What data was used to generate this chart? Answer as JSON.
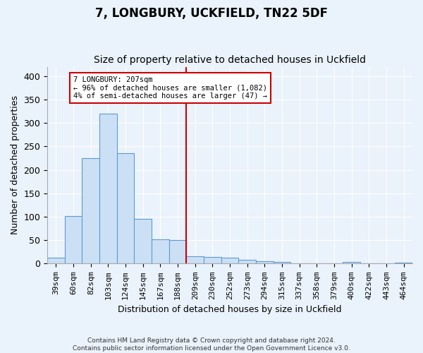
{
  "title": "7, LONGBURY, UCKFIELD, TN22 5DF",
  "subtitle": "Size of property relative to detached houses in Uckfield",
  "xlabel": "Distribution of detached houses by size in Uckfield",
  "ylabel": "Number of detached properties",
  "footnote1": "Contains HM Land Registry data © Crown copyright and database right 2024.",
  "footnote2": "Contains public sector information licensed under the Open Government Licence v3.0.",
  "categories": [
    "39sqm",
    "60sqm",
    "82sqm",
    "103sqm",
    "124sqm",
    "145sqm",
    "167sqm",
    "188sqm",
    "209sqm",
    "230sqm",
    "252sqm",
    "273sqm",
    "294sqm",
    "315sqm",
    "337sqm",
    "358sqm",
    "379sqm",
    "400sqm",
    "422sqm",
    "443sqm",
    "464sqm"
  ],
  "values": [
    12,
    102,
    225,
    320,
    236,
    96,
    52,
    51,
    16,
    14,
    13,
    8,
    5,
    3,
    1,
    0,
    0,
    3,
    0,
    1,
    2
  ],
  "bar_color": "#cce0f5",
  "bar_edge_color": "#5b9bd5",
  "vline_index": 8,
  "vline_color": "#cc0000",
  "annotation_line1": "7 LONGBURY: 207sqm",
  "annotation_line2": "← 96% of detached houses are smaller (1,082)",
  "annotation_line3": "4% of semi-detached houses are larger (47) →",
  "annotation_box_color": "#cc0000",
  "ylim": [
    0,
    420
  ],
  "yticks": [
    0,
    50,
    100,
    150,
    200,
    250,
    300,
    350,
    400
  ],
  "background_color": "#eaf2fb",
  "grid_color": "#ffffff",
  "title_fontsize": 12,
  "subtitle_fontsize": 10,
  "tick_fontsize": 8,
  "ylabel_fontsize": 9,
  "xlabel_fontsize": 9
}
